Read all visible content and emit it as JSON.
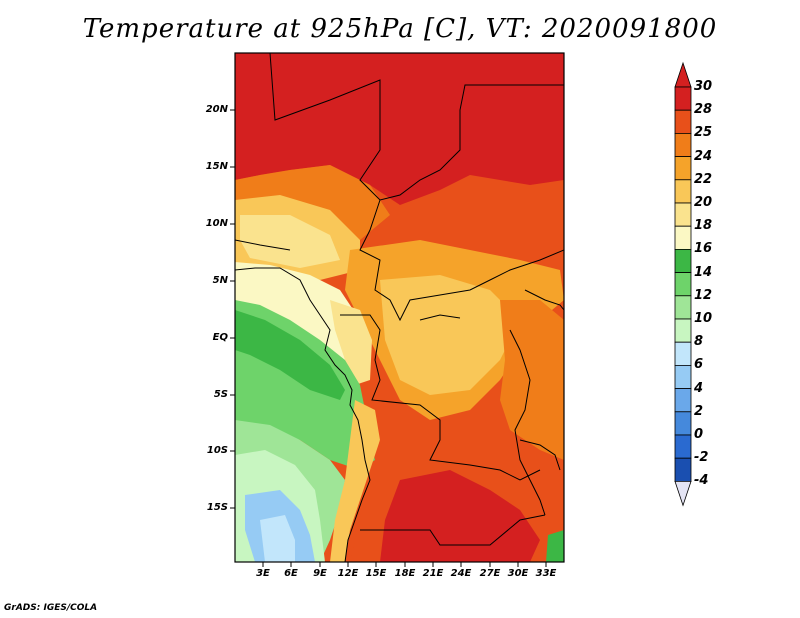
{
  "title": "Temperature at 925hPa [C], VT: 2020091800",
  "credit": "GrADS: IGES/COLA",
  "y_axis_labels": [
    "20N",
    "15N",
    "10N",
    "5N",
    "EQ",
    "5S",
    "10S",
    "15S"
  ],
  "x_axis_labels": [
    "3E",
    "6E",
    "9E",
    "12E",
    "15E",
    "18E",
    "21E",
    "24E",
    "27E",
    "30E",
    "33E"
  ],
  "colorbar": {
    "labels": [
      "30",
      "28",
      "25",
      "24",
      "22",
      "20",
      "18",
      "16",
      "14",
      "12",
      "10",
      "8",
      "6",
      "4",
      "2",
      "0",
      "-2",
      "-4"
    ],
    "colors": [
      "#d42020",
      "#e8501a",
      "#f07d19",
      "#f5a32a",
      "#f9c758",
      "#fae38e",
      "#fbf8c4",
      "#3cb745",
      "#6ed36a",
      "#9fe597",
      "#c8f6c1",
      "#c2e6fb",
      "#96cbf4",
      "#6aa8ea",
      "#4589dc",
      "#2a6ad0",
      "#1a4fb0",
      "#0c1f80"
    ],
    "top_tip_color": "#d42020",
    "bottom_tip_color": "#e4e4f4"
  }
}
